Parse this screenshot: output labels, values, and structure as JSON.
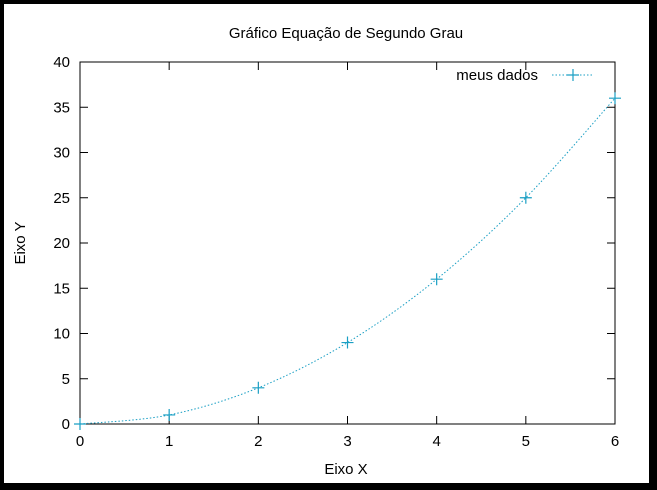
{
  "chart_data": {
    "type": "line",
    "title": "Gráfico Equação de Segundo Grau",
    "xlabel": "Eixo X",
    "ylabel": "Eixo Y",
    "xlim": [
      0,
      6
    ],
    "ylim": [
      0,
      40
    ],
    "xticks": [
      0,
      1,
      2,
      3,
      4,
      5,
      6
    ],
    "yticks": [
      0,
      5,
      10,
      15,
      20,
      25,
      30,
      35,
      40
    ],
    "grid": false,
    "legend_position": "top-right",
    "series": [
      {
        "name": "meus dados",
        "color": "#1a9fc4",
        "line_style": "dotted",
        "marker": "plus",
        "x": [
          0,
          1,
          2,
          3,
          4,
          5,
          6
        ],
        "y": [
          0,
          1,
          4,
          9,
          16,
          25,
          36
        ]
      }
    ]
  }
}
